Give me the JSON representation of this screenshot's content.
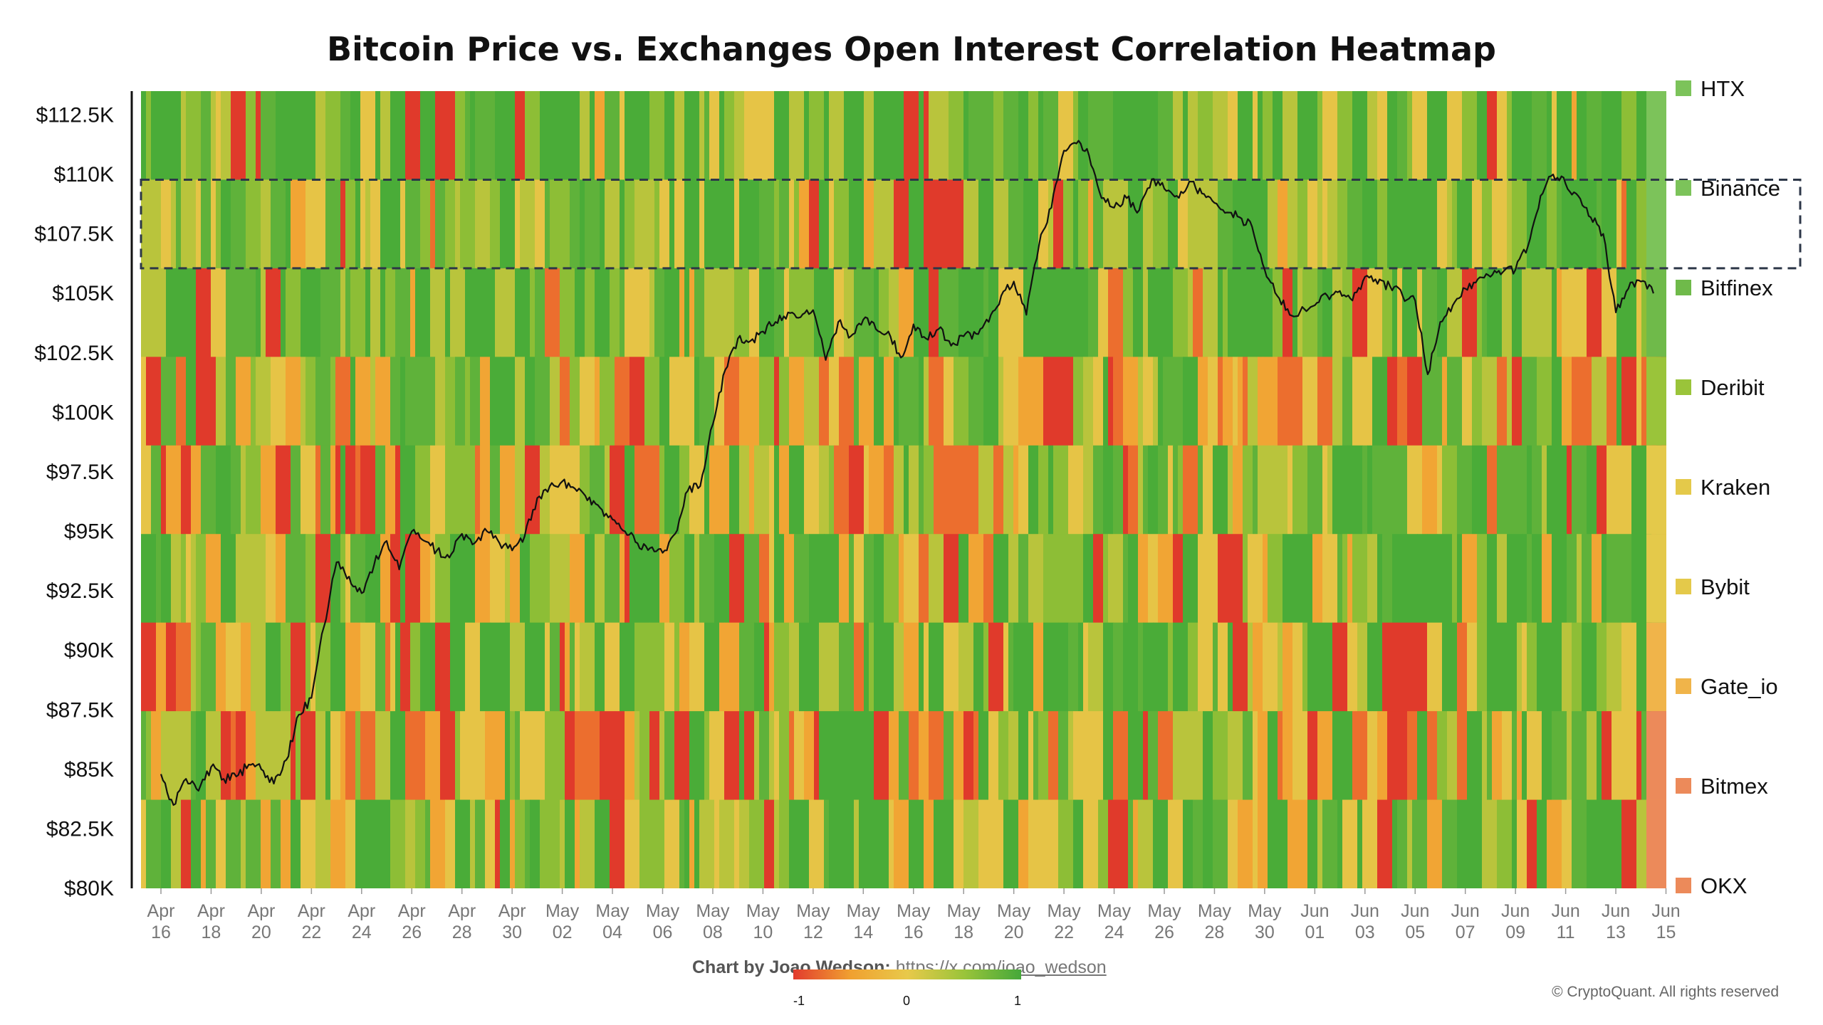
{
  "title": "Bitcoin Price vs. Exchanges Open Interest Correlation Heatmap",
  "credit": {
    "prefix": "Chart by Joao Wedson:",
    "link": "https://x.com/joao_wedson"
  },
  "copyright": "© CryptoQuant. All rights reserved",
  "colorbar": {
    "min_label": "-1",
    "mid_label": "0",
    "max_label": "1",
    "colors": [
      "#e23b2e",
      "#f0a030",
      "#e8c94a",
      "#9ac43a",
      "#45a83a"
    ]
  },
  "chart_data": {
    "type": "heatmap",
    "title": "Bitcoin Price vs. Exchanges Open Interest Correlation Heatmap",
    "ylabel": "",
    "xlabel": "",
    "ylim": [
      80000,
      113500
    ],
    "y_ticks": [
      {
        "value": 80000,
        "label": "$80K"
      },
      {
        "value": 82500,
        "label": "$82.5K"
      },
      {
        "value": 85000,
        "label": "$85K"
      },
      {
        "value": 87500,
        "label": "$87.5K"
      },
      {
        "value": 90000,
        "label": "$90K"
      },
      {
        "value": 92500,
        "label": "$92.5K"
      },
      {
        "value": 95000,
        "label": "$95K"
      },
      {
        "value": 97500,
        "label": "$97.5K"
      },
      {
        "value": 100000,
        "label": "$100K"
      },
      {
        "value": 102500,
        "label": "$102.5K"
      },
      {
        "value": 105000,
        "label": "$105K"
      },
      {
        "value": 107500,
        "label": "$107.5K"
      },
      {
        "value": 110000,
        "label": "$110K"
      },
      {
        "value": 112500,
        "label": "$112.5K"
      }
    ],
    "x_ticks": [
      [
        "Apr",
        "16"
      ],
      [
        "Apr",
        "18"
      ],
      [
        "Apr",
        "20"
      ],
      [
        "Apr",
        "22"
      ],
      [
        "Apr",
        "24"
      ],
      [
        "Apr",
        "26"
      ],
      [
        "Apr",
        "28"
      ],
      [
        "Apr",
        "30"
      ],
      [
        "May",
        "02"
      ],
      [
        "May",
        "04"
      ],
      [
        "May",
        "06"
      ],
      [
        "May",
        "08"
      ],
      [
        "May",
        "10"
      ],
      [
        "May",
        "12"
      ],
      [
        "May",
        "14"
      ],
      [
        "May",
        "16"
      ],
      [
        "May",
        "18"
      ],
      [
        "May",
        "20"
      ],
      [
        "May",
        "22"
      ],
      [
        "May",
        "24"
      ],
      [
        "May",
        "26"
      ],
      [
        "May",
        "28"
      ],
      [
        "May",
        "30"
      ],
      [
        "Jun",
        "01"
      ],
      [
        "Jun",
        "03"
      ],
      [
        "Jun",
        "05"
      ],
      [
        "Jun",
        "07"
      ],
      [
        "Jun",
        "09"
      ],
      [
        "Jun",
        "11"
      ],
      [
        "Jun",
        "13"
      ],
      [
        "Jun",
        "15"
      ]
    ],
    "exchanges": [
      {
        "name": "HTX",
        "color": "#7cc35a"
      },
      {
        "name": "Binance",
        "color": "#7cc35a"
      },
      {
        "name": "Bitfinex",
        "color": "#6fba4a"
      },
      {
        "name": "Deribit",
        "color": "#9ac43a"
      },
      {
        "name": "Kraken",
        "color": "#e4c94a"
      },
      {
        "name": "Bybit",
        "color": "#e4c94a"
      },
      {
        "name": "Gate_io",
        "color": "#f0b44a"
      },
      {
        "name": "Bitmex",
        "color": "#ec8a5a"
      },
      {
        "name": "OKX",
        "color": "#ec8a5a"
      }
    ],
    "highlight_band": {
      "exchange": "Binance",
      "style": "dashed box"
    },
    "price_series": {
      "name": "",
      "color": "#111111",
      "points": [
        [
          "2025-04-16",
          84800
        ],
        [
          "2025-04-16T12",
          83500
        ],
        [
          "2025-04-17",
          84600
        ],
        [
          "2025-04-17T12",
          84100
        ],
        [
          "2025-04-18",
          85100
        ],
        [
          "2025-04-18T12",
          84600
        ],
        [
          "2025-04-19",
          84700
        ],
        [
          "2025-04-19T12",
          85200
        ],
        [
          "2025-04-20",
          85000
        ],
        [
          "2025-04-20T12",
          84400
        ],
        [
          "2025-04-21",
          85400
        ],
        [
          "2025-04-21T12",
          87300
        ],
        [
          "2025-04-22",
          88000
        ],
        [
          "2025-04-22T12",
          91000
        ],
        [
          "2025-04-23",
          93700
        ],
        [
          "2025-04-23T12",
          93100
        ],
        [
          "2025-04-24",
          92400
        ],
        [
          "2025-04-24T12",
          93600
        ],
        [
          "2025-04-25",
          94600
        ],
        [
          "2025-04-25T12",
          93400
        ],
        [
          "2025-04-26",
          95000
        ],
        [
          "2025-04-26T12",
          94600
        ],
        [
          "2025-04-27",
          94200
        ],
        [
          "2025-04-27T12",
          93900
        ],
        [
          "2025-04-28",
          94900
        ],
        [
          "2025-04-28T12",
          94500
        ],
        [
          "2025-04-29",
          95000
        ],
        [
          "2025-04-29T12",
          94500
        ],
        [
          "2025-04-30",
          94200
        ],
        [
          "2025-04-30T12",
          94800
        ],
        [
          "2025-05-01",
          96400
        ],
        [
          "2025-05-01T12",
          96900
        ],
        [
          "2025-05-02",
          97100
        ],
        [
          "2025-05-02T12",
          96800
        ],
        [
          "2025-05-03",
          96300
        ],
        [
          "2025-05-03T12",
          96000
        ],
        [
          "2025-05-04",
          95500
        ],
        [
          "2025-05-04T12",
          95000
        ],
        [
          "2025-05-05",
          94500
        ],
        [
          "2025-05-05T12",
          94300
        ],
        [
          "2025-05-06",
          94100
        ],
        [
          "2025-05-06T12",
          94900
        ],
        [
          "2025-05-07",
          96700
        ],
        [
          "2025-05-07T12",
          96900
        ],
        [
          "2025-05-08",
          99500
        ],
        [
          "2025-05-08T12",
          101800
        ],
        [
          "2025-05-09",
          103100
        ],
        [
          "2025-05-09T12",
          103000
        ],
        [
          "2025-05-10",
          103400
        ],
        [
          "2025-05-10T12",
          103800
        ],
        [
          "2025-05-11",
          104200
        ],
        [
          "2025-05-11T12",
          104000
        ],
        [
          "2025-05-12",
          104300
        ],
        [
          "2025-05-12T12",
          102200
        ],
        [
          "2025-05-13",
          103800
        ],
        [
          "2025-05-13T12",
          103200
        ],
        [
          "2025-05-14",
          103900
        ],
        [
          "2025-05-14T12",
          103500
        ],
        [
          "2025-05-15",
          103400
        ],
        [
          "2025-05-15T12",
          102300
        ],
        [
          "2025-05-16",
          103700
        ],
        [
          "2025-05-16T12",
          103100
        ],
        [
          "2025-05-17",
          103500
        ],
        [
          "2025-05-17T12",
          102800
        ],
        [
          "2025-05-18",
          103200
        ],
        [
          "2025-05-18T12",
          103300
        ],
        [
          "2025-05-19",
          103800
        ],
        [
          "2025-05-19T12",
          104900
        ],
        [
          "2025-05-20",
          105500
        ],
        [
          "2025-05-20T12",
          104100
        ],
        [
          "2025-05-21",
          107000
        ],
        [
          "2025-05-21T12",
          108600
        ],
        [
          "2025-05-22",
          111000
        ],
        [
          "2025-05-22T12",
          111300
        ],
        [
          "2025-05-23",
          110800
        ],
        [
          "2025-05-23T12",
          109000
        ],
        [
          "2025-05-24",
          108600
        ],
        [
          "2025-05-24T12",
          109000
        ],
        [
          "2025-05-25",
          108500
        ],
        [
          "2025-05-25T12",
          109800
        ],
        [
          "2025-05-26",
          109400
        ],
        [
          "2025-05-26T12",
          109100
        ],
        [
          "2025-05-27",
          109700
        ],
        [
          "2025-05-27T12",
          109200
        ],
        [
          "2025-05-28",
          108800
        ],
        [
          "2025-05-28T12",
          108400
        ],
        [
          "2025-05-29",
          108200
        ],
        [
          "2025-05-29T12",
          107800
        ],
        [
          "2025-05-30",
          106000
        ],
        [
          "2025-05-30T12",
          104900
        ],
        [
          "2025-05-31",
          104100
        ],
        [
          "2025-06-01",
          104500
        ],
        [
          "2025-06-01T12",
          104900
        ],
        [
          "2025-06-02",
          105100
        ],
        [
          "2025-06-02T12",
          104700
        ],
        [
          "2025-06-03",
          105700
        ],
        [
          "2025-06-03T12",
          105400
        ],
        [
          "2025-06-04",
          105300
        ],
        [
          "2025-06-04T12",
          104900
        ],
        [
          "2025-06-05",
          104700
        ],
        [
          "2025-06-05T12",
          101600
        ],
        [
          "2025-06-06",
          103800
        ],
        [
          "2025-06-06T12",
          104500
        ],
        [
          "2025-06-07",
          105200
        ],
        [
          "2025-06-07T12",
          105600
        ],
        [
          "2025-06-08",
          105700
        ],
        [
          "2025-06-08T12",
          105900
        ],
        [
          "2025-06-09",
          106000
        ],
        [
          "2025-06-09T12",
          107000
        ],
        [
          "2025-06-10",
          109100
        ],
        [
          "2025-06-10T12",
          110000
        ],
        [
          "2025-06-11",
          109600
        ],
        [
          "2025-06-11T12",
          109100
        ],
        [
          "2025-06-12",
          108200
        ],
        [
          "2025-06-12T12",
          107500
        ],
        [
          "2025-06-13",
          104200
        ],
        [
          "2025-06-13T12",
          105200
        ],
        [
          "2025-06-14",
          105500
        ],
        [
          "2025-06-14T12",
          105000
        ]
      ]
    }
  }
}
